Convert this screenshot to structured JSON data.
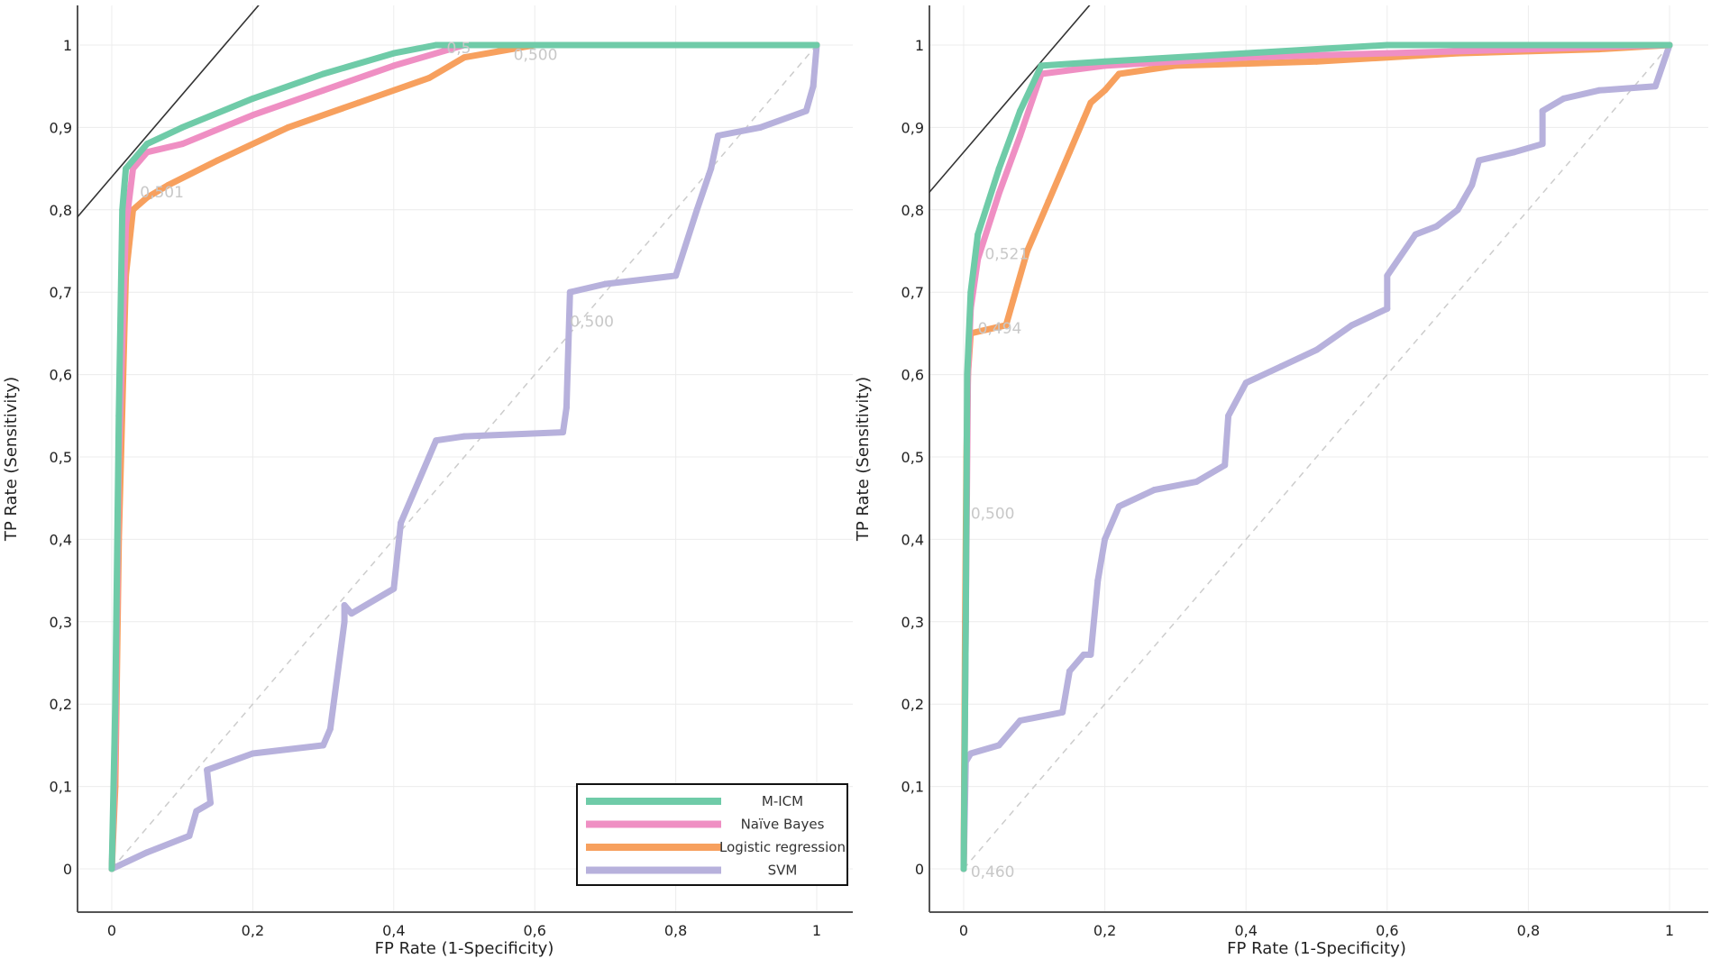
{
  "colors": {
    "micm": "#6fcba8",
    "naive_bayes": "#ef8fc3",
    "logistic": "#f7a05e",
    "svm": "#b7b1dc",
    "axis": "#555555",
    "grid": "#ececec",
    "diag": "#cccccc",
    "threshold": "#c8c8c8"
  },
  "legend": {
    "items": [
      {
        "key": "micm",
        "label": "M-ICM"
      },
      {
        "key": "naive_bayes",
        "label": "Naïve Bayes"
      },
      {
        "key": "logistic",
        "label": "Logistic regression"
      },
      {
        "key": "svm",
        "label": "SVM"
      }
    ]
  },
  "chart_data": [
    {
      "type": "line",
      "title": "",
      "xlabel": "FP Rate (1-Specificity)",
      "ylabel": "TP Rate (Sensitivity)",
      "xlim": [
        0,
        1
      ],
      "ylim": [
        0,
        1
      ],
      "x_ticks": [
        0,
        0.2,
        0.4,
        0.6,
        0.8,
        1
      ],
      "x_tick_labels": [
        "0",
        "0,2",
        "0,4",
        "0,6",
        "0,8",
        "1"
      ],
      "y_ticks": [
        0,
        0.1,
        0.2,
        0.3,
        0.4,
        0.5,
        0.6,
        0.7,
        0.8,
        0.9,
        1
      ],
      "y_tick_labels": [
        "0",
        "0,1",
        "0,2",
        "0,3",
        "0,4",
        "0,5",
        "0,6",
        "0,7",
        "0,8",
        "0,9",
        "1"
      ],
      "grid": true,
      "legend_position": "bottom-right",
      "tangent_line": [
        [
          -0.05,
          0.79
        ],
        [
          0.21,
          1.05
        ]
      ],
      "series": [
        {
          "name": "M-ICM",
          "key": "micm",
          "points": [
            [
              0,
              0
            ],
            [
              0.005,
              0.2
            ],
            [
              0.01,
              0.55
            ],
            [
              0.015,
              0.8
            ],
            [
              0.02,
              0.85
            ],
            [
              0.05,
              0.88
            ],
            [
              0.1,
              0.9
            ],
            [
              0.2,
              0.935
            ],
            [
              0.3,
              0.965
            ],
            [
              0.4,
              0.99
            ],
            [
              0.46,
              1
            ],
            [
              1,
              1
            ]
          ]
        },
        {
          "name": "Naïve Bayes",
          "key": "naive_bayes",
          "points": [
            [
              0,
              0
            ],
            [
              0.005,
              0.15
            ],
            [
              0.01,
              0.5
            ],
            [
              0.02,
              0.78
            ],
            [
              0.03,
              0.85
            ],
            [
              0.05,
              0.87
            ],
            [
              0.1,
              0.88
            ],
            [
              0.2,
              0.915
            ],
            [
              0.3,
              0.945
            ],
            [
              0.4,
              0.975
            ],
            [
              0.5,
              1
            ],
            [
              1,
              1
            ]
          ]
        },
        {
          "name": "Logistic regression",
          "key": "logistic",
          "points": [
            [
              0,
              0
            ],
            [
              0.005,
              0.1
            ],
            [
              0.01,
              0.4
            ],
            [
              0.02,
              0.72
            ],
            [
              0.03,
              0.8
            ],
            [
              0.05,
              0.815
            ],
            [
              0.08,
              0.83
            ],
            [
              0.15,
              0.86
            ],
            [
              0.25,
              0.9
            ],
            [
              0.35,
              0.93
            ],
            [
              0.45,
              0.96
            ],
            [
              0.5,
              0.985
            ],
            [
              0.6,
              1
            ],
            [
              1,
              1
            ]
          ]
        },
        {
          "name": "SVM",
          "key": "svm",
          "points": [
            [
              0,
              0
            ],
            [
              0.05,
              0.02
            ],
            [
              0.11,
              0.04
            ],
            [
              0.12,
              0.07
            ],
            [
              0.14,
              0.08
            ],
            [
              0.135,
              0.12
            ],
            [
              0.2,
              0.14
            ],
            [
              0.3,
              0.15
            ],
            [
              0.31,
              0.17
            ],
            [
              0.33,
              0.3
            ],
            [
              0.33,
              0.32
            ],
            [
              0.34,
              0.31
            ],
            [
              0.4,
              0.34
            ],
            [
              0.41,
              0.42
            ],
            [
              0.45,
              0.5
            ],
            [
              0.46,
              0.52
            ],
            [
              0.5,
              0.525
            ],
            [
              0.64,
              0.53
            ],
            [
              0.645,
              0.56
            ],
            [
              0.65,
              0.7
            ],
            [
              0.7,
              0.71
            ],
            [
              0.8,
              0.72
            ],
            [
              0.83,
              0.8
            ],
            [
              0.85,
              0.85
            ],
            [
              0.86,
              0.89
            ],
            [
              0.92,
              0.9
            ],
            [
              0.985,
              0.92
            ],
            [
              0.995,
              0.95
            ],
            [
              1,
              1
            ]
          ]
        }
      ],
      "threshold_labels": [
        {
          "text": "0,501",
          "x": 0.04,
          "y": 0.815
        },
        {
          "text": "0,5",
          "x": 0.475,
          "y": 0.99
        },
        {
          "text": "0,500",
          "x": 0.57,
          "y": 0.982
        },
        {
          "text": "0,500",
          "x": 0.65,
          "y": 0.658
        }
      ]
    },
    {
      "type": "line",
      "title": "",
      "xlabel": "FP Rate (1-Specificity)",
      "ylabel": "TP Rate (Sensitivity)",
      "xlim": [
        0,
        1
      ],
      "ylim": [
        0,
        1
      ],
      "x_ticks": [
        0,
        0.2,
        0.4,
        0.6,
        0.8,
        1
      ],
      "x_tick_labels": [
        "0",
        "0,2",
        "0,4",
        "0,6",
        "0,8",
        "1"
      ],
      "y_ticks": [
        0,
        0.1,
        0.2,
        0.3,
        0.4,
        0.5,
        0.6,
        0.7,
        0.8,
        0.9,
        1
      ],
      "y_tick_labels": [
        "0",
        "0,1",
        "0,2",
        "0,3",
        "0,4",
        "0,5",
        "0,6",
        "0,7",
        "0,8",
        "0,9",
        "1"
      ],
      "grid": true,
      "tangent_line": [
        [
          -0.05,
          0.82
        ],
        [
          0.18,
          1.05
        ]
      ],
      "series": [
        {
          "name": "M-ICM",
          "key": "micm",
          "points": [
            [
              0,
              0
            ],
            [
              0.003,
              0.3
            ],
            [
              0.005,
              0.6
            ],
            [
              0.01,
              0.7
            ],
            [
              0.02,
              0.77
            ],
            [
              0.05,
              0.85
            ],
            [
              0.08,
              0.92
            ],
            [
              0.11,
              0.975
            ],
            [
              0.2,
              0.98
            ],
            [
              0.4,
              0.99
            ],
            [
              0.6,
              1
            ],
            [
              1,
              1
            ]
          ]
        },
        {
          "name": "Naïve Bayes",
          "key": "naive_bayes",
          "points": [
            [
              0,
              0
            ],
            [
              0.003,
              0.3
            ],
            [
              0.006,
              0.6
            ],
            [
              0.01,
              0.68
            ],
            [
              0.02,
              0.74
            ],
            [
              0.05,
              0.82
            ],
            [
              0.08,
              0.89
            ],
            [
              0.11,
              0.965
            ],
            [
              0.2,
              0.975
            ],
            [
              0.4,
              0.985
            ],
            [
              0.6,
              0.99
            ],
            [
              0.8,
              0.995
            ],
            [
              1,
              1
            ]
          ]
        },
        {
          "name": "Logistic regression",
          "key": "logistic",
          "points": [
            [
              0,
              0
            ],
            [
              0.002,
              0.3
            ],
            [
              0.004,
              0.5
            ],
            [
              0.006,
              0.6
            ],
            [
              0.01,
              0.65
            ],
            [
              0.06,
              0.66
            ],
            [
              0.07,
              0.69
            ],
            [
              0.09,
              0.75
            ],
            [
              0.12,
              0.81
            ],
            [
              0.15,
              0.87
            ],
            [
              0.17,
              0.91
            ],
            [
              0.18,
              0.93
            ],
            [
              0.2,
              0.945
            ],
            [
              0.22,
              0.965
            ],
            [
              0.3,
              0.975
            ],
            [
              0.5,
              0.98
            ],
            [
              0.7,
              0.99
            ],
            [
              0.9,
              0.995
            ],
            [
              1,
              1
            ]
          ]
        },
        {
          "name": "SVM",
          "key": "svm",
          "points": [
            [
              0,
              0
            ],
            [
              0.003,
              0.13
            ],
            [
              0.01,
              0.14
            ],
            [
              0.05,
              0.15
            ],
            [
              0.08,
              0.18
            ],
            [
              0.14,
              0.19
            ],
            [
              0.15,
              0.24
            ],
            [
              0.17,
              0.26
            ],
            [
              0.18,
              0.26
            ],
            [
              0.19,
              0.35
            ],
            [
              0.2,
              0.4
            ],
            [
              0.22,
              0.44
            ],
            [
              0.27,
              0.46
            ],
            [
              0.33,
              0.47
            ],
            [
              0.37,
              0.49
            ],
            [
              0.375,
              0.55
            ],
            [
              0.4,
              0.59
            ],
            [
              0.45,
              0.61
            ],
            [
              0.5,
              0.63
            ],
            [
              0.55,
              0.66
            ],
            [
              0.6,
              0.68
            ],
            [
              0.6,
              0.72
            ],
            [
              0.64,
              0.77
            ],
            [
              0.67,
              0.78
            ],
            [
              0.7,
              0.8
            ],
            [
              0.72,
              0.83
            ],
            [
              0.73,
              0.86
            ],
            [
              0.78,
              0.87
            ],
            [
              0.82,
              0.88
            ],
            [
              0.82,
              0.92
            ],
            [
              0.85,
              0.935
            ],
            [
              0.9,
              0.945
            ],
            [
              0.98,
              0.95
            ],
            [
              1,
              1
            ]
          ]
        }
      ],
      "threshold_labels": [
        {
          "text": "0,521",
          "x": 0.03,
          "y": 0.74
        },
        {
          "text": "0,494",
          "x": 0.02,
          "y": 0.65
        },
        {
          "text": "0,500",
          "x": 0.01,
          "y": 0.425
        },
        {
          "text": "0,460",
          "x": 0.01,
          "y": -0.01
        }
      ]
    }
  ]
}
